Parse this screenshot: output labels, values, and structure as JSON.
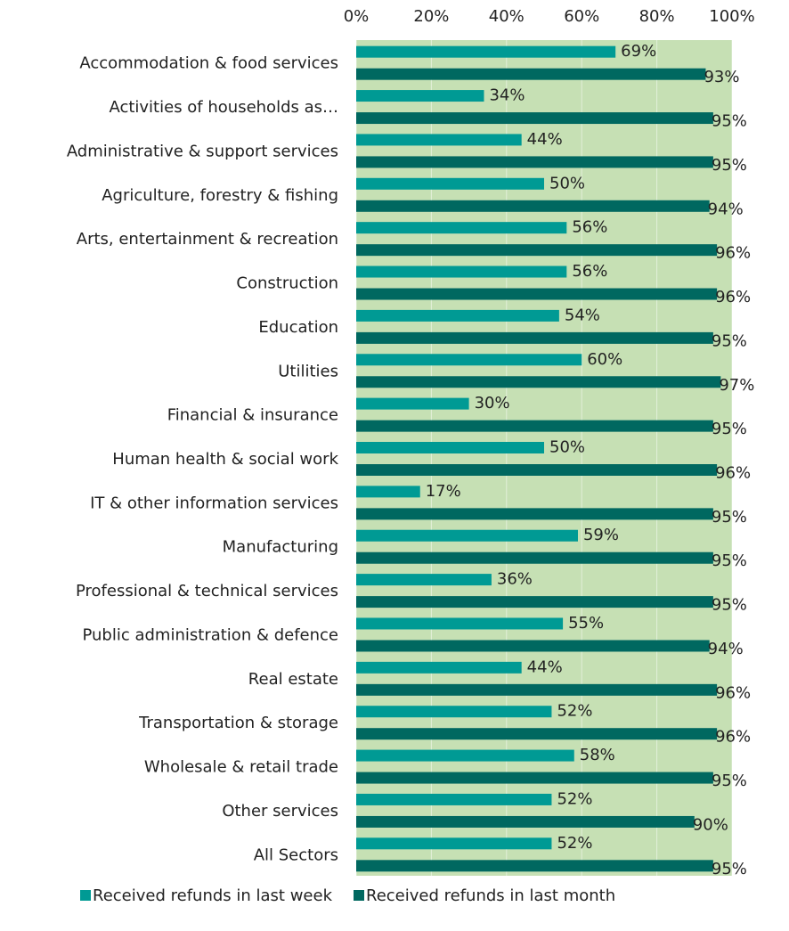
{
  "chart_data": {
    "type": "barh",
    "categories": [
      "Accommodation & food services",
      "Activities of households as…",
      "Administrative & support services",
      "Agriculture, forestry & fishing",
      "Arts, entertainment & recreation",
      "Construction",
      "Education",
      "Utilities",
      "Financial & insurance",
      "Human health & social work",
      "IT & other information services",
      "Manufacturing",
      "Professional & technical services",
      "Public administration & defence",
      "Real estate",
      "Transportation & storage",
      "Wholesale & retail trade",
      "Other services",
      "All Sectors"
    ],
    "series": [
      {
        "name": "Received refunds in last week",
        "color": "#009a94",
        "values": [
          69,
          34,
          44,
          50,
          56,
          56,
          54,
          60,
          30,
          50,
          17,
          59,
          36,
          55,
          44,
          52,
          58,
          52,
          52
        ],
        "value_labels": [
          "69%",
          "34%",
          "44%",
          "50%",
          "56%",
          "56%",
          "54%",
          "60%",
          "30%",
          "50%",
          "17%",
          "59%",
          "36%",
          "55%",
          "44%",
          "52%",
          "58%",
          "52%",
          "52%"
        ]
      },
      {
        "name": "Received refunds in last month",
        "color": "#006860",
        "values": [
          93,
          95,
          95,
          94,
          96,
          96,
          95,
          97,
          95,
          96,
          95,
          95,
          95,
          94,
          96,
          96,
          95,
          90,
          95
        ],
        "value_labels": [
          "93%",
          "95%",
          "95%",
          "94%",
          "96%",
          "96%",
          "95%",
          "97%",
          "95%",
          "96%",
          "95%",
          "95%",
          "95%",
          "94%",
          "96%",
          "96%",
          "95%",
          "90%",
          "95%"
        ]
      }
    ],
    "xlim": [
      0,
      100
    ],
    "xticks": [
      {
        "value": 0,
        "label": "0%"
      },
      {
        "value": 20,
        "label": "20%"
      },
      {
        "value": 40,
        "label": "40%"
      },
      {
        "value": 60,
        "label": "60%"
      },
      {
        "value": 80,
        "label": "80%"
      },
      {
        "value": 100,
        "label": "100%"
      }
    ],
    "grid": true,
    "plot_background": "#c6e0b4",
    "legend": "bottom"
  }
}
